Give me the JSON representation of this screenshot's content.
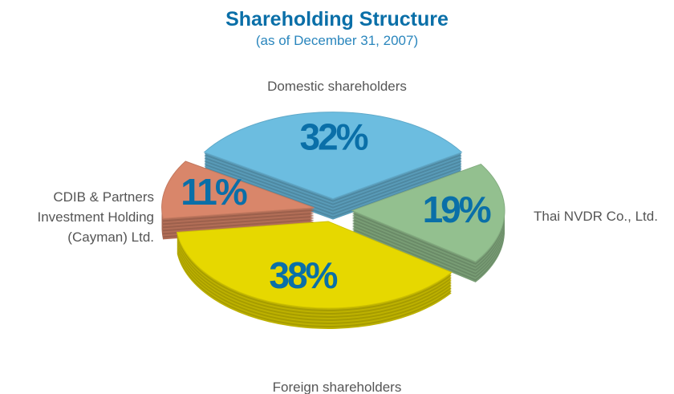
{
  "chart_data": {
    "type": "pie",
    "title": "Shareholding Structure",
    "subtitle": "(as of December 31, 2007)",
    "categories": [
      "Domestic shareholders",
      "Thai NVDR Co., Ltd.",
      "Foreign shareholders",
      "CDIB & Partners Investment Holding (Cayman) Ltd."
    ],
    "values": [
      32,
      19,
      38,
      11
    ],
    "value_labels": [
      "32%",
      "19%",
      "38%",
      "11%"
    ],
    "colors": [
      "#6cbde0",
      "#93c08f",
      "#e6d800",
      "#d9866a"
    ]
  }
}
